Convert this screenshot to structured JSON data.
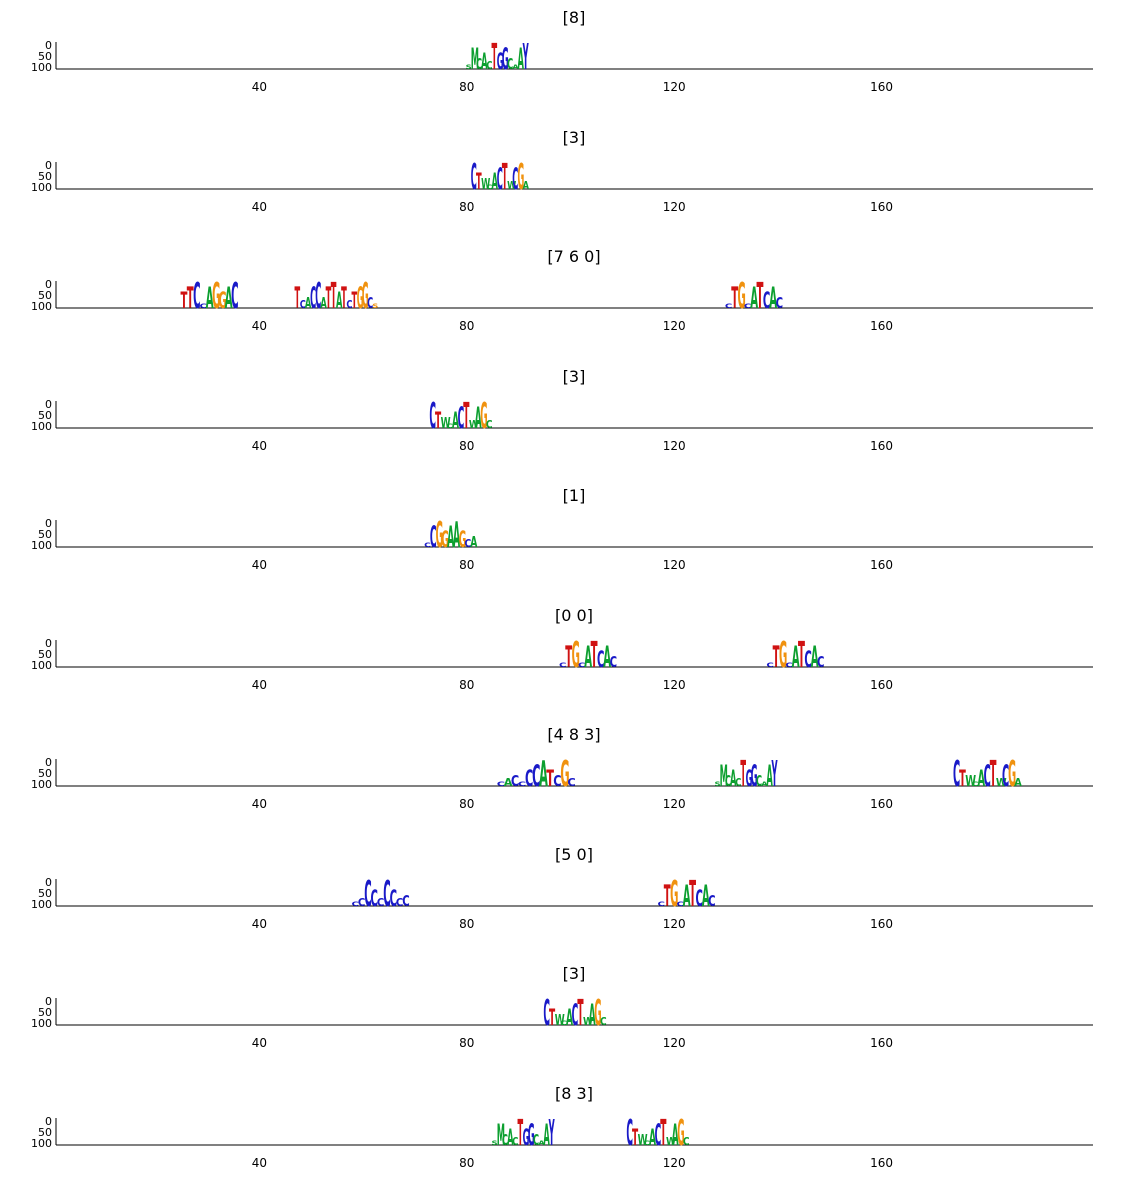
{
  "chart_data": [
    {
      "type": "logo",
      "title": "[8]",
      "x_ticks": [
        40,
        80,
        120,
        160
      ],
      "y_ticks": [
        "0",
        "50",
        "100"
      ],
      "xlim": [
        0,
        200
      ],
      "motifs": [
        {
          "start": 79,
          "end": 91,
          "letters": "sMcAcTGGcaAY",
          "colors": "GGGGGRBBGGGB"
        }
      ]
    },
    {
      "type": "logo",
      "title": "[3]",
      "x_ticks": [
        40,
        80,
        120,
        160
      ],
      "y_ticks": [
        "0",
        "50",
        "100"
      ],
      "xlim": [
        0,
        200
      ],
      "motifs": [
        {
          "start": 80,
          "end": 91,
          "letters": "CTwcACTwCGa",
          "colors": "BRGGGBRGBOG"
        }
      ]
    },
    {
      "type": "logo",
      "title": "[7 6 0]",
      "x_ticks": [
        40,
        80,
        120,
        160
      ],
      "y_ticks": [
        "0",
        "50",
        "100"
      ],
      "xlim": [
        0,
        200
      ],
      "motifs": [
        {
          "start": 24,
          "end": 35,
          "letters": "TTCcAGGAC",
          "colors": "RRBBGOOGB"
        },
        {
          "start": 46,
          "end": 62,
          "letters": "TcaCCaTTATcTGGcs",
          "colors": "RBGBBGRRGRBROOBO"
        },
        {
          "start": 129,
          "end": 140,
          "letters": "cTGcATCAc",
          "colors": "BROBGRBGB"
        }
      ]
    },
    {
      "type": "logo",
      "title": "[3]",
      "x_ticks": [
        40,
        80,
        120,
        160
      ],
      "y_ticks": [
        "0",
        "50",
        "100"
      ],
      "xlim": [
        0,
        200
      ],
      "motifs": [
        {
          "start": 72,
          "end": 84,
          "letters": "CTwcACTwAGc",
          "colors": "BRGGGBRGGOG"
        }
      ]
    },
    {
      "type": "logo",
      "title": "[1]",
      "x_ticks": [
        40,
        80,
        120,
        160
      ],
      "y_ticks": [
        "0",
        "50",
        "100"
      ],
      "xlim": [
        0,
        200
      ],
      "motifs": [
        {
          "start": 71,
          "end": 81,
          "letters": "cCGGAAGca",
          "colors": "BBOOGGOBG"
        }
      ]
    },
    {
      "type": "logo",
      "title": "[0 0]",
      "x_ticks": [
        40,
        80,
        120,
        160
      ],
      "y_ticks": [
        "0",
        "50",
        "100"
      ],
      "xlim": [
        0,
        200
      ],
      "motifs": [
        {
          "start": 97,
          "end": 108,
          "letters": "cTGcATCAc",
          "colors": "BROBGRBGB"
        },
        {
          "start": 137,
          "end": 148,
          "letters": "cTGcATCAc",
          "colors": "BROBGRBGB"
        }
      ]
    },
    {
      "type": "logo",
      "title": "[4 8 3]",
      "x_ticks": [
        40,
        80,
        120,
        160
      ],
      "y_ticks": [
        "0",
        "50",
        "100"
      ],
      "xlim": [
        0,
        200
      ],
      "motifs": [
        {
          "start": 85,
          "end": 100,
          "letters": "caccCCATcGc",
          "colors": "BGBBBBGRBOB"
        },
        {
          "start": 127,
          "end": 139,
          "letters": "sMcAcTGGcaAY",
          "colors": "GGGGGRBBGGGB"
        },
        {
          "start": 173,
          "end": 186,
          "letters": "CTwcACTwCGa",
          "colors": "BRGGGBRGBOG"
        }
      ]
    },
    {
      "type": "logo",
      "title": "[5 0]",
      "x_ticks": [
        40,
        80,
        120,
        160
      ],
      "y_ticks": [
        "0",
        "50",
        "100"
      ],
      "xlim": [
        0,
        200
      ],
      "motifs": [
        {
          "start": 57,
          "end": 68,
          "letters": "ccCCcCCcc",
          "colors": "BBBBBBBBB"
        },
        {
          "start": 116,
          "end": 127,
          "letters": "cTGcATCAc",
          "colors": "BROBGRBGB"
        }
      ]
    },
    {
      "type": "logo",
      "title": "[3]",
      "x_ticks": [
        40,
        80,
        120,
        160
      ],
      "y_ticks": [
        "0",
        "50",
        "100"
      ],
      "xlim": [
        0,
        200
      ],
      "motifs": [
        {
          "start": 94,
          "end": 106,
          "letters": "CTwcACTwAGc",
          "colors": "BRGGGBRGGOG"
        }
      ]
    },
    {
      "type": "logo",
      "title": "[8 3]",
      "x_ticks": [
        40,
        80,
        120,
        160
      ],
      "y_ticks": [
        "0",
        "50",
        "100"
      ],
      "xlim": [
        0,
        200
      ],
      "motifs": [
        {
          "start": 84,
          "end": 96,
          "letters": "sMcAcTGGcaAY",
          "colors": "GGGGGRBBGGGB"
        },
        {
          "start": 110,
          "end": 122,
          "letters": "CTwcACTwAGc",
          "colors": "BRGGGBRGGOG"
        }
      ]
    }
  ],
  "colors": {
    "A": "#0c9f2f",
    "C": "#1a1ac8",
    "G": "#f0920f",
    "T": "#d01212",
    "axis": "#000000"
  }
}
